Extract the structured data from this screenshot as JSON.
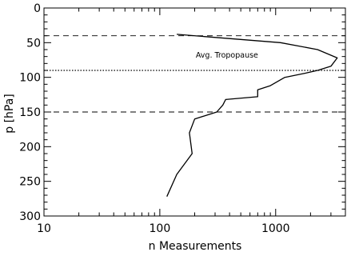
{
  "chart_data": {
    "type": "line",
    "title": "",
    "xlabel": "n Measurements",
    "ylabel": "p [hPa]",
    "xscale": "log",
    "xlim": [
      10,
      4000
    ],
    "ylim": [
      300,
      0
    ],
    "y_inverted": true,
    "x_ticks": [
      10,
      100,
      1000
    ],
    "x_tick_labels": [
      "10",
      "100",
      "1000"
    ],
    "y_ticks": [
      0,
      50,
      100,
      150,
      200,
      250,
      300
    ],
    "y_tick_labels": [
      "0",
      "50",
      "100",
      "150",
      "200",
      "250",
      "300"
    ],
    "grid": false,
    "series": [
      {
        "points": [
          [
            140,
            38
          ],
          [
            1100,
            50
          ],
          [
            2300,
            60
          ],
          [
            3400,
            72
          ],
          [
            3000,
            84
          ],
          [
            2300,
            90
          ],
          [
            1800,
            94
          ],
          [
            1200,
            100
          ],
          [
            900,
            112
          ],
          [
            700,
            118
          ],
          [
            700,
            128
          ],
          [
            370,
            132
          ],
          [
            350,
            140
          ],
          [
            310,
            150
          ],
          [
            200,
            160
          ],
          [
            180,
            180
          ],
          [
            190,
            210
          ],
          [
            140,
            240
          ],
          [
            115,
            272
          ]
        ]
      }
    ],
    "reference_lines": [
      {
        "y": 40,
        "style": "dashed"
      },
      {
        "y": 90,
        "style": "dotted"
      },
      {
        "y": 150,
        "style": "dashed"
      }
    ],
    "annotations": [
      {
        "text": "Avg. Tropopause",
        "x": 380,
        "y": 68
      }
    ]
  }
}
